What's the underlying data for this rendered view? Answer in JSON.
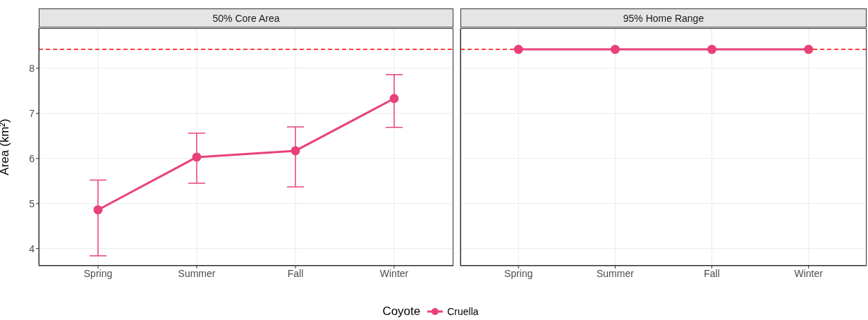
{
  "chart_data": [
    {
      "type": "line",
      "title": "50% Core Area",
      "ylabel": "Area (km²)",
      "categories": [
        "Spring",
        "Summer",
        "Fall",
        "Winter"
      ],
      "series": [
        {
          "name": "Cruella",
          "color": "#e8417a",
          "values": [
            4.86,
            6.03,
            6.17,
            7.33
          ],
          "errors": [
            [
              3.84,
              5.52
            ],
            [
              5.45,
              6.56
            ],
            [
              5.37,
              6.7
            ],
            [
              6.69,
              7.86
            ]
          ]
        }
      ],
      "ylim": [
        3.62,
        8.89
      ],
      "yticks": [
        4,
        5,
        6,
        7,
        8
      ],
      "grid": true,
      "marker": "circle",
      "legend": "bottom",
      "legend_title": "Coyote",
      "ref_lines": [
        {
          "axis": "y",
          "value": 8.42,
          "color": "#ff0000",
          "line_style": "dashed"
        }
      ]
    },
    {
      "type": "line",
      "title": "95% Home Range",
      "categories": [
        "Spring",
        "Summer",
        "Fall",
        "Winter"
      ],
      "series": [
        {
          "color": "#e8417a",
          "values": [
            8.42,
            8.42,
            8.42,
            8.42
          ]
        }
      ],
      "ylim": [
        3.62,
        8.89
      ],
      "yticks": [
        4,
        5,
        6,
        7,
        8
      ],
      "grid": true,
      "marker": "circle",
      "tick_labels": "x",
      "ref_lines": [
        {
          "axis": "y",
          "value": 8.42,
          "color": "#ff0000",
          "line_style": "dashed"
        }
      ]
    }
  ]
}
